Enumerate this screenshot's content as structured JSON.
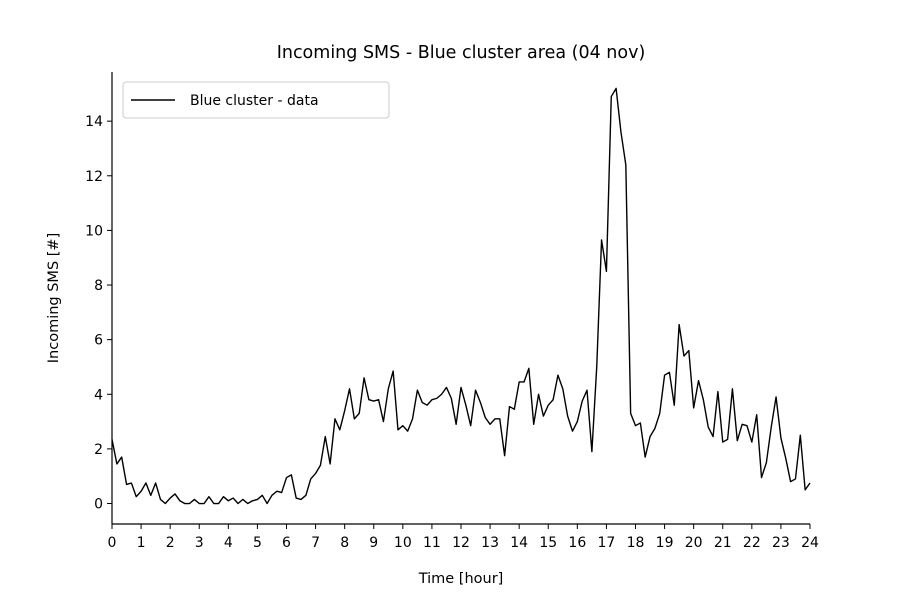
{
  "chart_data": {
    "type": "line",
    "title": "Incoming SMS - Blue cluster area (04 nov)",
    "xlabel": "Time [hour]",
    "ylabel": "Incoming SMS [#]",
    "xlim": [
      0,
      24
    ],
    "ylim": [
      -0.75,
      15.8
    ],
    "xticks": [
      0,
      1,
      2,
      3,
      4,
      5,
      6,
      7,
      8,
      9,
      10,
      11,
      12,
      13,
      14,
      15,
      16,
      17,
      18,
      19,
      20,
      21,
      22,
      23,
      24
    ],
    "yticks": [
      0,
      2,
      4,
      6,
      8,
      10,
      12,
      14
    ],
    "grid": false,
    "legend_position": "top-left",
    "series": [
      {
        "name": "Blue cluster - data",
        "color": "#000000",
        "x": [
          0,
          0.167,
          0.333,
          0.5,
          0.667,
          0.833,
          1,
          1.167,
          1.333,
          1.5,
          1.667,
          1.833,
          2,
          2.167,
          2.333,
          2.5,
          2.667,
          2.833,
          3,
          3.167,
          3.333,
          3.5,
          3.667,
          3.833,
          4,
          4.167,
          4.333,
          4.5,
          4.667,
          4.833,
          5,
          5.167,
          5.333,
          5.5,
          5.667,
          5.833,
          6,
          6.167,
          6.333,
          6.5,
          6.667,
          6.833,
          7,
          7.167,
          7.333,
          7.5,
          7.667,
          7.833,
          8,
          8.167,
          8.333,
          8.5,
          8.667,
          8.833,
          9,
          9.167,
          9.333,
          9.5,
          9.667,
          9.833,
          10,
          10.167,
          10.333,
          10.5,
          10.667,
          10.833,
          11,
          11.167,
          11.333,
          11.5,
          11.667,
          11.833,
          12,
          12.167,
          12.333,
          12.5,
          12.667,
          12.833,
          13,
          13.167,
          13.333,
          13.5,
          13.667,
          13.833,
          14,
          14.167,
          14.333,
          14.5,
          14.667,
          14.833,
          15,
          15.167,
          15.333,
          15.5,
          15.667,
          15.833,
          16,
          16.167,
          16.333,
          16.5,
          16.667,
          16.833,
          17,
          17.167,
          17.333,
          17.5,
          17.667,
          17.833,
          18,
          18.167,
          18.333,
          18.5,
          18.667,
          18.833,
          19,
          19.167,
          19.333,
          19.5,
          19.667,
          19.833,
          20,
          20.167,
          20.333,
          20.5,
          20.667,
          20.833,
          21,
          21.167,
          21.333,
          21.5,
          21.667,
          21.833,
          22,
          22.167,
          22.333,
          22.5,
          22.667,
          22.833,
          23,
          23.167,
          23.333,
          23.5,
          23.667,
          23.833,
          24
        ],
        "y": [
          2.35,
          1.45,
          1.7,
          0.7,
          0.75,
          0.25,
          0.45,
          0.75,
          0.3,
          0.75,
          0.15,
          0.0,
          0.2,
          0.35,
          0.1,
          0.0,
          0.0,
          0.15,
          0.0,
          0.0,
          0.25,
          0.0,
          0.0,
          0.25,
          0.1,
          0.2,
          0.0,
          0.15,
          0.0,
          0.1,
          0.15,
          0.3,
          0.0,
          0.3,
          0.45,
          0.4,
          0.95,
          1.05,
          0.2,
          0.15,
          0.3,
          0.9,
          1.1,
          1.4,
          2.45,
          1.45,
          3.1,
          2.7,
          3.4,
          4.2,
          3.1,
          3.3,
          4.6,
          3.8,
          3.75,
          3.8,
          3.0,
          4.2,
          4.85,
          2.7,
          2.85,
          2.65,
          3.1,
          4.15,
          3.7,
          3.6,
          3.8,
          3.85,
          4.0,
          4.25,
          3.85,
          2.9,
          4.25,
          3.6,
          2.85,
          4.15,
          3.7,
          3.15,
          2.9,
          3.1,
          3.1,
          1.75,
          3.55,
          3.45,
          4.45,
          4.45,
          4.95,
          2.9,
          4.0,
          3.2,
          3.6,
          3.8,
          4.7,
          4.2,
          3.2,
          2.65,
          3.0,
          3.75,
          4.15,
          1.9,
          5.0,
          9.65,
          8.5,
          14.9,
          15.2,
          13.6,
          12.4,
          3.3,
          2.85,
          2.95,
          1.7,
          2.45,
          2.75,
          3.3,
          4.7,
          4.8,
          3.6,
          6.55,
          5.4,
          5.6,
          3.5,
          4.5,
          3.8,
          2.8,
          2.45,
          4.1,
          2.25,
          2.35,
          4.2,
          2.3,
          2.9,
          2.85,
          2.25,
          3.25,
          0.95,
          1.5,
          2.8,
          3.9,
          2.4,
          1.65,
          0.8,
          0.9,
          2.5,
          0.5,
          0.75
        ]
      }
    ]
  }
}
